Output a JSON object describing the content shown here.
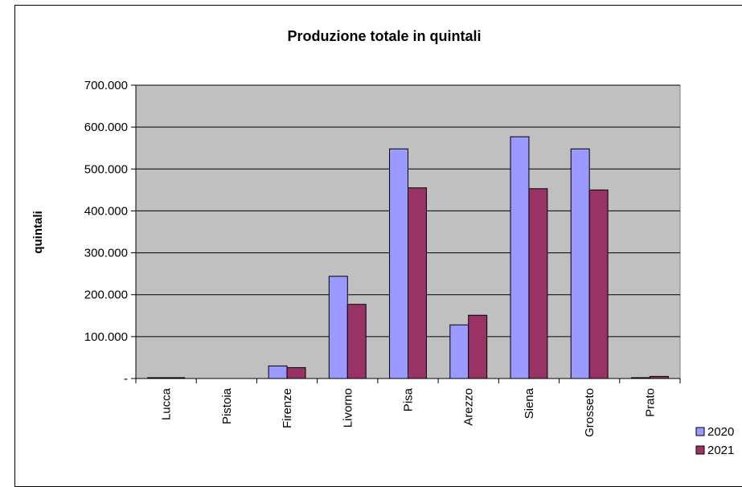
{
  "chart_data": {
    "type": "bar",
    "title": "Produzione totale in quintali",
    "xlabel": "",
    "ylabel": "quintali",
    "categories": [
      "Lucca",
      "Pistoia",
      "Firenze",
      "Livorno",
      "Pisa",
      "Arezzo",
      "Siena",
      "Grosseto",
      "Prato"
    ],
    "series": [
      {
        "name": "2020",
        "color": "#9999ff",
        "values": [
          2000,
          0,
          30000,
          244000,
          548000,
          128000,
          577000,
          548000,
          2000
        ]
      },
      {
        "name": "2021",
        "color": "#993366",
        "values": [
          2000,
          0,
          26000,
          177000,
          455000,
          151000,
          453000,
          450000,
          5000
        ]
      }
    ],
    "ylim": [
      0,
      700000
    ],
    "yticks": [
      0,
      100000,
      200000,
      300000,
      400000,
      500000,
      600000,
      700000
    ],
    "ytick_labels": [
      "-",
      "100.000",
      "200.000",
      "300.000",
      "400.000",
      "500.000",
      "600.000",
      "700.000"
    ],
    "plot_background": "#c0c0c0",
    "grid": true,
    "legend_position": "right"
  }
}
